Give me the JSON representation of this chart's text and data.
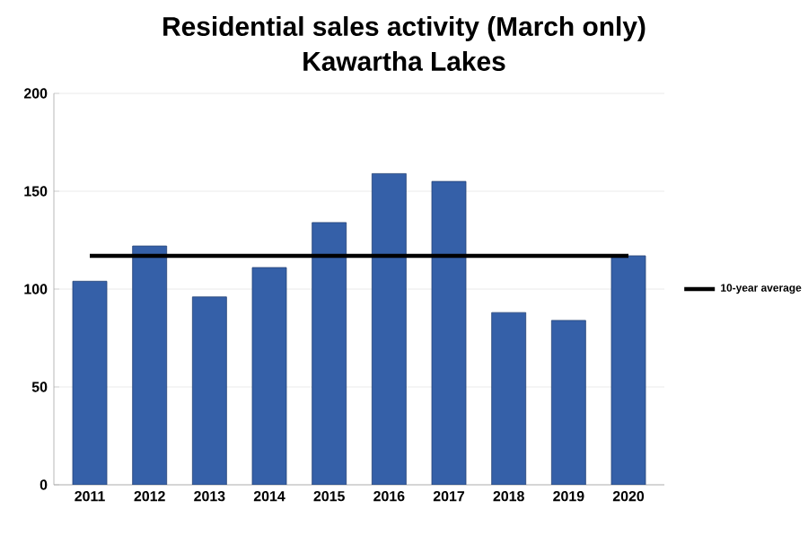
{
  "chart_data": {
    "type": "bar",
    "title": "Residential sales activity (March only)",
    "subtitle": "Kawartha Lakes",
    "categories": [
      "2011",
      "2012",
      "2013",
      "2014",
      "2015",
      "2016",
      "2017",
      "2018",
      "2019",
      "2020"
    ],
    "series": [
      {
        "color": "#3560a8",
        "values": [
          104,
          122,
          96,
          111,
          134,
          159,
          155,
          88,
          84,
          117
        ]
      },
      {
        "type": "line",
        "name": "10-year average",
        "color": "#000000",
        "values": [
          117,
          117,
          117,
          117,
          117,
          117,
          117,
          117,
          117,
          117
        ]
      }
    ],
    "ylim": [
      0,
      200
    ],
    "yticks": [
      0,
      50,
      100,
      150,
      200
    ],
    "grid": "y",
    "legend": "right"
  }
}
